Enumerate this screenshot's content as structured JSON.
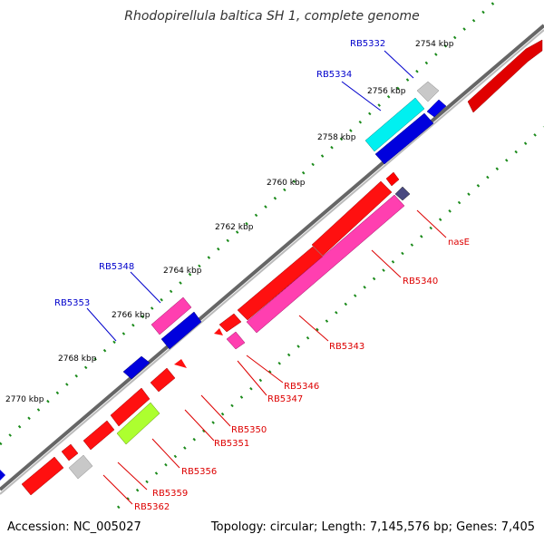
{
  "title": "Rhodopirellula baltica SH 1, complete genome",
  "accession": "Accession: NC_005027",
  "summary": "Topology: circular; Length: 7,145,576 bp; Genes: 7,405",
  "colors": {
    "backbone": "#7f7f7f",
    "tick_dot": "#1a8a1a",
    "gene_red": "#ff0000",
    "gene_magenta": "#ff3fb0",
    "gene_blue": "#0000ee",
    "gene_cyan": "#00ffff",
    "gene_gray": "#c0c0c0",
    "gene_lime": "#adff2f",
    "gene_navy": "#4a4a80",
    "label_top": "#0000cc",
    "label_bottom": "#dd0000"
  },
  "scale": {
    "ticks": [
      "2754 kbp",
      "2756 kbp",
      "2758 kbp",
      "2760 kbp",
      "2762 kbp",
      "2764 kbp",
      "2766 kbp",
      "2768 kbp",
      "2770 kbp"
    ]
  },
  "gene_labels": {
    "top": [
      "RB5332",
      "RB5334",
      "RB5348",
      "RB5353"
    ],
    "bottom": [
      "nasE",
      "RB5340",
      "RB5343",
      "RB5346",
      "RB5347",
      "RB5350",
      "RB5351",
      "RB5356",
      "RB5359",
      "RB5362"
    ]
  }
}
